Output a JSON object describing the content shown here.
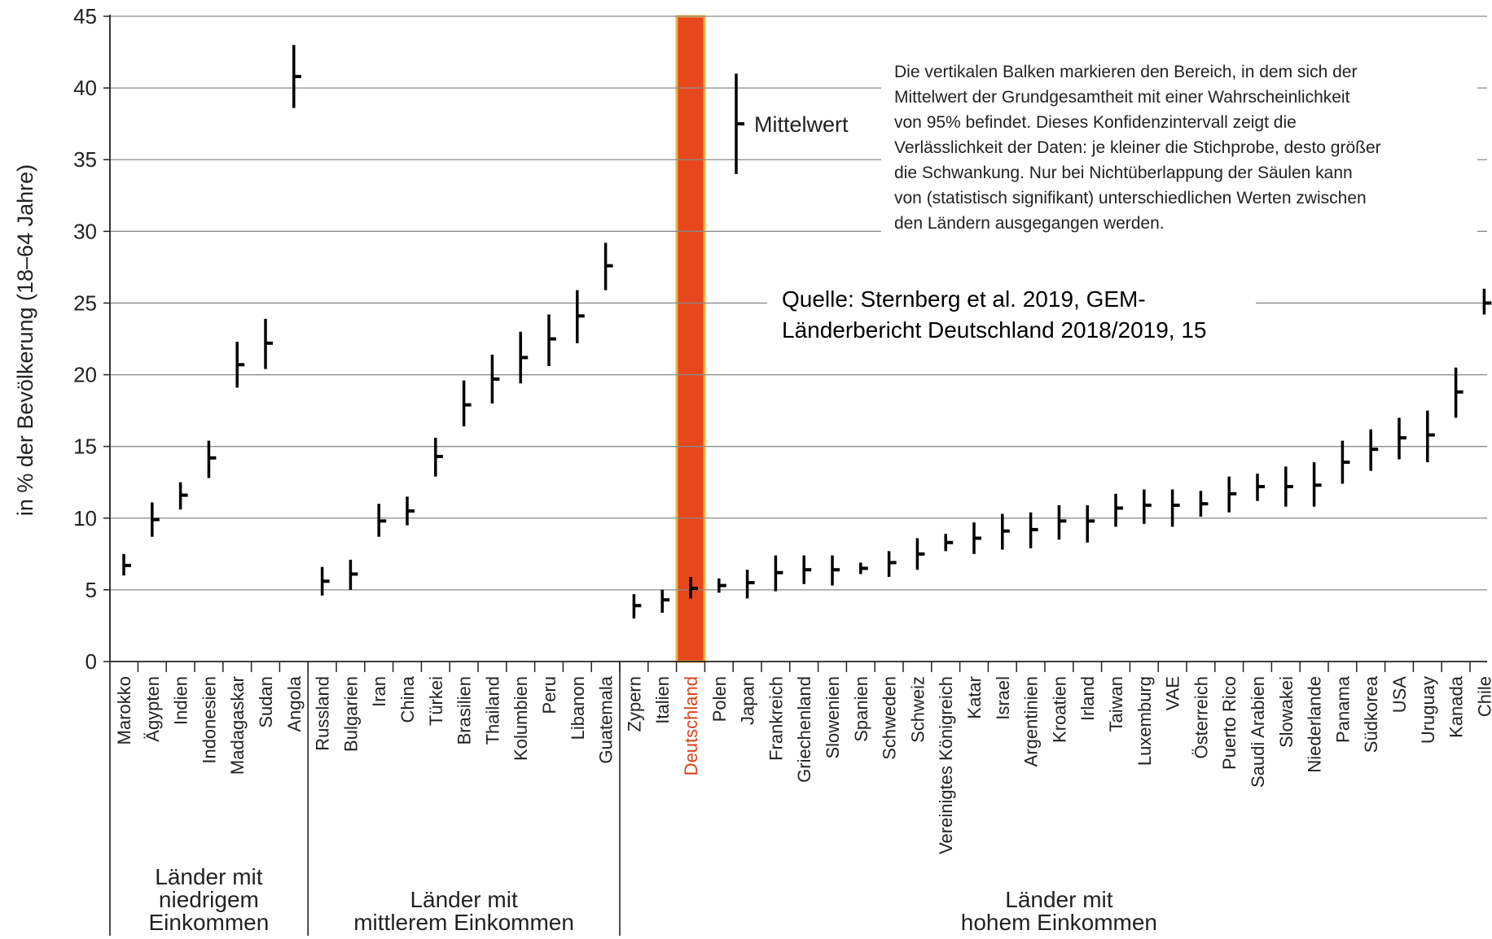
{
  "chart_data": {
    "type": "errorbar",
    "ylabel": "in % der Bevölkerung (18–64 Jahre)",
    "ylim": [
      0,
      45
    ],
    "yticks": [
      0,
      5,
      10,
      15,
      20,
      25,
      30,
      35,
      40,
      45
    ],
    "grid": true,
    "highlight_category": "Deutschland",
    "highlight_color": "#e8461c",
    "highlight_border_color": "#f0b23a",
    "legend": {
      "label": "Mittelwert",
      "low": 34,
      "mean": 37.5,
      "high": 41
    },
    "note_lines": [
      "Die vertikalen Balken markieren den Bereich, in dem sich der",
      "Mittelwert der Grundgesamtheit mit einer Wahrscheinlichkeit",
      "von 95% befindet. Dieses Konfidenzintervall zeigt die",
      "Verlässlichkeit der Daten: je kleiner die Stichprobe, desto größer",
      "die Schwankung. Nur bei Nichtüberlappung der Säulen kann",
      "von (statistisch signifikant) unterschiedlichen Werten zwischen",
      "den Ländern ausgegangen werden."
    ],
    "source_lines": [
      "Quelle: Sternberg et al. 2019, GEM-",
      "Länderbericht Deutschland 2018/2019, 15"
    ],
    "groups": [
      {
        "label_lines": [
          "Länder mit",
          "niedrigem",
          "Einkommen"
        ],
        "start": 0,
        "end": 6
      },
      {
        "label_lines": [
          "Länder mit",
          "mittlerem Einkommen"
        ],
        "start": 7,
        "end": 17
      },
      {
        "label_lines": [
          "Länder mit",
          "hohem Einkommen"
        ],
        "start": 18,
        "end": 48
      }
    ],
    "categories": [
      "Marokko",
      "Ägypten",
      "Indien",
      "Indonesien",
      "Madagaskar",
      "Sudan",
      "Angola",
      "Russland",
      "Bulgarien",
      "Iran",
      "China",
      "Türkei",
      "Brasilien",
      "Thailand",
      "Kolumbien",
      "Peru",
      "Libanon",
      "Guatemala",
      "Zypern",
      "Italien",
      "Deutschland",
      "Polen",
      "Japan",
      "Frankreich",
      "Griechenland",
      "Slowenien",
      "Spanien",
      "Schweden",
      "Schweiz",
      "Vereinigtes Königreich",
      "Katar",
      "Israel",
      "Argentinien",
      "Kroatien",
      "Irland",
      "Taiwan",
      "Luxemburg",
      "VAE",
      "Österreich",
      "Puerto Rico",
      "Saudi Arabien",
      "Slowakei",
      "Niederlande",
      "Panama",
      "Südkorea",
      "USA",
      "Uruguay",
      "Kanada",
      "Chile"
    ],
    "mean": [
      6.7,
      9.9,
      11.6,
      14.2,
      20.7,
      22.2,
      40.8,
      5.6,
      6.1,
      9.8,
      10.5,
      14.3,
      17.9,
      19.7,
      21.2,
      22.5,
      24.1,
      27.6,
      3.9,
      4.3,
      5.1,
      5.3,
      5.5,
      6.2,
      6.4,
      6.4,
      6.5,
      6.9,
      7.5,
      8.3,
      8.6,
      9.1,
      9.2,
      9.8,
      9.8,
      10.7,
      10.9,
      10.9,
      11.0,
      11.7,
      12.2,
      12.2,
      12.3,
      13.9,
      14.8,
      15.6,
      15.8,
      18.8,
      25.0
    ],
    "low": [
      6.0,
      8.7,
      10.6,
      12.8,
      19.1,
      20.4,
      38.6,
      4.6,
      5.0,
      8.7,
      9.5,
      12.9,
      16.4,
      18.0,
      19.4,
      20.6,
      22.2,
      25.9,
      3.0,
      3.4,
      4.4,
      4.8,
      4.4,
      4.9,
      5.4,
      5.3,
      6.1,
      5.9,
      6.4,
      7.7,
      7.5,
      7.8,
      7.9,
      8.5,
      8.3,
      9.4,
      9.6,
      9.4,
      10.1,
      10.4,
      11.2,
      10.8,
      10.8,
      12.4,
      13.3,
      14.1,
      13.9,
      17.0,
      24.2
    ],
    "high": [
      7.5,
      11.1,
      12.5,
      15.4,
      22.3,
      23.9,
      43.0,
      6.6,
      7.1,
      11.0,
      11.5,
      15.6,
      19.6,
      21.4,
      23.0,
      24.2,
      25.9,
      29.2,
      4.7,
      5.0,
      5.9,
      5.8,
      6.4,
      7.4,
      7.4,
      7.4,
      6.9,
      7.7,
      8.6,
      8.9,
      9.7,
      10.3,
      10.4,
      10.9,
      10.9,
      11.7,
      12.0,
      12.0,
      11.9,
      12.9,
      13.1,
      13.6,
      13.9,
      15.4,
      16.2,
      17.0,
      17.5,
      20.5,
      26.0
    ]
  }
}
